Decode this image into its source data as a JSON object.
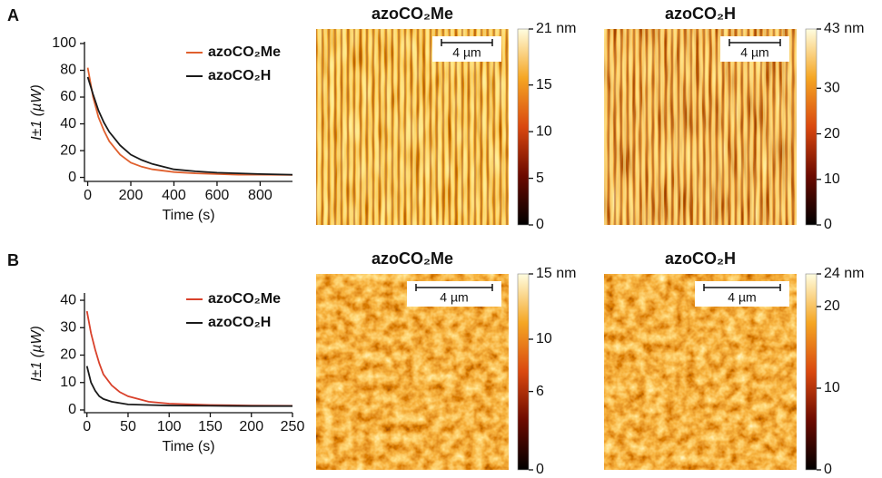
{
  "panel_labels": [
    "A",
    "B"
  ],
  "chart_data": [
    {
      "type": "line",
      "xlabel": "Time (s)",
      "ylabel": "I±1 (µW)",
      "x": [
        0,
        25,
        50,
        75,
        100,
        150,
        200,
        250,
        300,
        400,
        500,
        600,
        700,
        800,
        950
      ],
      "series": [
        {
          "name": "azoCO₂Me",
          "color": "#e0602e",
          "values": [
            82,
            60,
            45,
            35,
            27,
            17,
            11,
            8,
            6,
            4,
            3,
            2.5,
            2,
            2,
            1.8
          ]
        },
        {
          "name": "azoCO₂H",
          "color": "#1a1a1a",
          "values": [
            75,
            62,
            50,
            41,
            34,
            24,
            17,
            13,
            10,
            6,
            4.5,
            3.5,
            3,
            2.5,
            2
          ]
        }
      ],
      "xlim": [
        -15,
        950
      ],
      "ylim": [
        -3,
        100
      ],
      "xticks": [
        0,
        200,
        400,
        600,
        800
      ],
      "yticks": [
        0,
        20,
        40,
        60,
        80,
        100
      ]
    },
    {
      "type": "image",
      "title": "azoCO₂Me",
      "scale_bar": "4 µm",
      "clim": [
        0,
        21
      ],
      "cticks": [
        0,
        5,
        10,
        15,
        {
          "value": 21,
          "label": "21 nm"
        }
      ]
    },
    {
      "type": "image",
      "title": "azoCO₂H",
      "scale_bar": "4 µm",
      "clim": [
        0,
        43
      ],
      "cticks": [
        0,
        10,
        20,
        30,
        {
          "value": 43,
          "label": "43 nm"
        }
      ]
    },
    {
      "type": "line",
      "xlabel": "Time (s)",
      "ylabel": "I±1 (µW)",
      "x": [
        0,
        5,
        10,
        15,
        20,
        30,
        40,
        50,
        75,
        100,
        150,
        200,
        250
      ],
      "series": [
        {
          "name": "azoCO₂Me",
          "color": "#d9412b",
          "values": [
            36,
            28,
            22,
            17,
            13,
            9,
            6.5,
            5,
            3,
            2.3,
            1.8,
            1.6,
            1.5
          ]
        },
        {
          "name": "azoCO₂H",
          "color": "#1a1a1a",
          "values": [
            16,
            10,
            7,
            5,
            4,
            3,
            2.5,
            2,
            1.8,
            1.6,
            1.5,
            1.4,
            1.4
          ]
        }
      ],
      "xlim": [
        -3,
        250
      ],
      "ylim": [
        -1,
        42
      ],
      "xticks": [
        0,
        50,
        100,
        150,
        200,
        250
      ],
      "yticks": [
        0,
        10,
        20,
        30,
        40
      ]
    },
    {
      "type": "image",
      "title": "azoCO₂Me",
      "scale_bar": "4 µm",
      "clim": [
        0,
        15
      ],
      "cticks": [
        0,
        6,
        10,
        {
          "value": 15,
          "label": "15 nm"
        }
      ]
    },
    {
      "type": "image",
      "title": "azoCO₂H",
      "scale_bar": "4 µm",
      "clim": [
        0,
        24
      ],
      "cticks": [
        0,
        10,
        20,
        {
          "value": 24,
          "label": "24 nm"
        }
      ]
    }
  ]
}
